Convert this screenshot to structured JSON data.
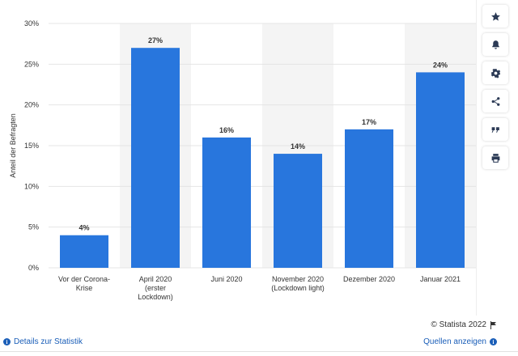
{
  "chart_data": {
    "type": "bar",
    "categories": [
      [
        "Vor der Corona-",
        "Krise"
      ],
      [
        "April 2020",
        "(erster",
        "Lockdown)"
      ],
      [
        "Juni 2020"
      ],
      [
        "November 2020",
        "(Lockdown light)"
      ],
      [
        "Dezember 2020"
      ],
      [
        "Januar 2021"
      ]
    ],
    "values": [
      4,
      27,
      16,
      14,
      17,
      24
    ],
    "value_labels": [
      "4%",
      "27%",
      "16%",
      "14%",
      "17%",
      "24%"
    ],
    "ylabel": "Anteil der Befragten",
    "yticks": [
      0,
      5,
      10,
      15,
      20,
      25,
      30
    ],
    "ytick_labels": [
      "0%",
      "5%",
      "10%",
      "15%",
      "20%",
      "25%",
      "30%"
    ],
    "ylim": [
      0,
      30
    ],
    "grid": true,
    "highlighted_columns": [
      1,
      3,
      5
    ],
    "colors": {
      "bar": "#2876dd",
      "band": "#f4f4f4",
      "grid": "#e4e4e4"
    }
  },
  "toolbar": {
    "buttons": [
      "star-icon",
      "bell-icon",
      "gear-icon",
      "share-icon",
      "quote-icon",
      "print-icon"
    ]
  },
  "footer": {
    "copyright": "© Statista 2022",
    "details_link": "Details zur Statistik",
    "sources_link": "Quellen anzeigen"
  }
}
